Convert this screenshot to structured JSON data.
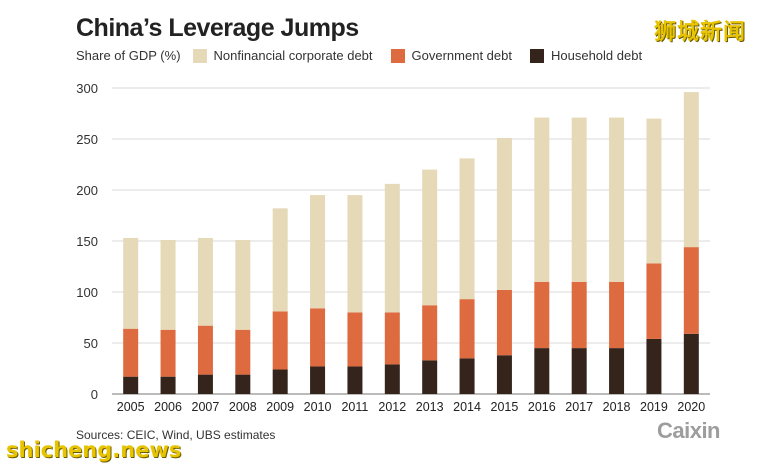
{
  "watermark_top": "狮城新闻",
  "watermark_bottom": "shicheng.news",
  "logo": "Caixin",
  "source": "Sources: CEIC, Wind, UBS estimates",
  "colors": {
    "nonfinancial": "#e6d9b8",
    "government": "#dd6b3f",
    "household": "#35241b",
    "grid": "#d9d9d9",
    "axis": "#777777"
  },
  "chart_data": {
    "type": "bar",
    "stacked": true,
    "title": "China’s Leverage Jumps",
    "ylabel": "Share of GDP (%)",
    "xlabel": "",
    "categories": [
      "2005",
      "2006",
      "2007",
      "2008",
      "2009",
      "2010",
      "2011",
      "2012",
      "2013",
      "2014",
      "2015",
      "2016",
      "2017",
      "2018",
      "2019",
      "2020"
    ],
    "series": [
      {
        "name": "Household debt",
        "color_key": "household",
        "values": [
          17,
          17,
          19,
          19,
          24,
          27,
          27,
          29,
          33,
          35,
          38,
          45,
          45,
          45,
          54,
          59
        ]
      },
      {
        "name": "Government debt",
        "color_key": "government",
        "values": [
          47,
          46,
          48,
          44,
          57,
          57,
          53,
          51,
          54,
          58,
          64,
          65,
          65,
          65,
          74,
          85
        ]
      },
      {
        "name": "Nonfinancial corporate debt",
        "color_key": "nonfinancial",
        "values": [
          89,
          88,
          86,
          88,
          101,
          111,
          115,
          126,
          133,
          138,
          149,
          161,
          161,
          161,
          142,
          152
        ]
      }
    ],
    "legend_order": [
      "Nonfinancial corporate debt",
      "Government debt",
      "Household debt"
    ],
    "ylim": [
      0,
      300
    ],
    "yticks": [
      0,
      50,
      100,
      150,
      200,
      250,
      300
    ],
    "grid": true,
    "legend_position": "top-left"
  }
}
